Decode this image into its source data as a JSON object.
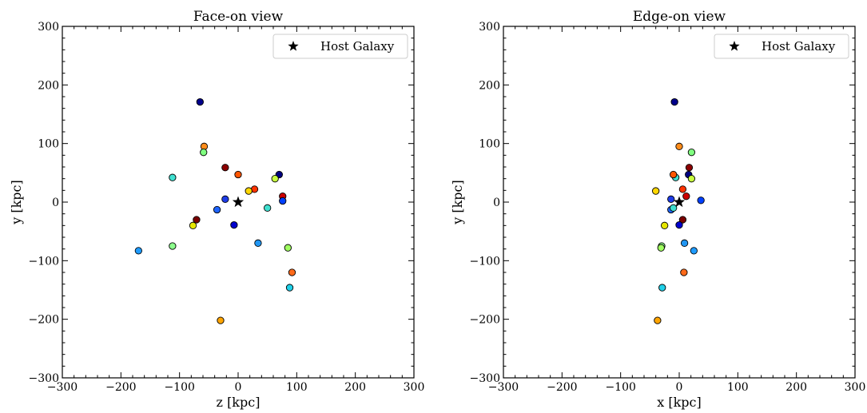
{
  "chart_data": [
    {
      "type": "scatter",
      "title": "Face-on view",
      "xlabel": "z [kpc]",
      "ylabel": "y [kpc]",
      "xlim": [
        -300,
        300
      ],
      "ylim": [
        -300,
        300
      ],
      "xticks": [
        "−300",
        "−200",
        "−100",
        "0",
        "100",
        "200",
        "300"
      ],
      "yticks": [
        "−300",
        "−200",
        "−100",
        "0",
        "100",
        "200",
        "300"
      ],
      "grid": false,
      "legend": {
        "position": "top-right",
        "entries": [
          {
            "label": "Host Galaxy",
            "marker": "star",
            "color": "#000000"
          }
        ]
      },
      "host": {
        "x": 0,
        "y": 0
      },
      "points": [
        {
          "x": -65,
          "y": 171,
          "color": "#00008b"
        },
        {
          "x": -58,
          "y": 95,
          "color": "#ff8c1a"
        },
        {
          "x": -59,
          "y": 85,
          "color": "#80ff80"
        },
        {
          "x": -112,
          "y": 42,
          "color": "#40e0d0"
        },
        {
          "x": -22,
          "y": 59,
          "color": "#8b0000"
        },
        {
          "x": 0,
          "y": 47,
          "color": "#ff5500"
        },
        {
          "x": 70,
          "y": 47,
          "color": "#000080"
        },
        {
          "x": 63,
          "y": 40,
          "color": "#c8ff40"
        },
        {
          "x": 28,
          "y": 22,
          "color": "#ff3300"
        },
        {
          "x": 18,
          "y": 19,
          "color": "#ffd700"
        },
        {
          "x": -22,
          "y": 5,
          "color": "#1e3ce6"
        },
        {
          "x": 76,
          "y": 10,
          "color": "#cc0000"
        },
        {
          "x": 76,
          "y": 2,
          "color": "#0040ff"
        },
        {
          "x": -36,
          "y": -13,
          "color": "#1e64ff"
        },
        {
          "x": 50,
          "y": -10,
          "color": "#40e0d0"
        },
        {
          "x": -71,
          "y": -30,
          "color": "#7a0000"
        },
        {
          "x": -77,
          "y": -40,
          "color": "#e6e600"
        },
        {
          "x": -7,
          "y": -39,
          "color": "#0000cd"
        },
        {
          "x": 34,
          "y": -70,
          "color": "#2196f3"
        },
        {
          "x": -112,
          "y": -75,
          "color": "#8cff8c"
        },
        {
          "x": -170,
          "y": -83,
          "color": "#1e9bff"
        },
        {
          "x": 85,
          "y": -78,
          "color": "#a0ff60"
        },
        {
          "x": 92,
          "y": -120,
          "color": "#ff6a1a"
        },
        {
          "x": 88,
          "y": -146,
          "color": "#20d0e8"
        },
        {
          "x": -30,
          "y": -202,
          "color": "#ffa500"
        }
      ]
    },
    {
      "type": "scatter",
      "title": "Edge-on view",
      "xlabel": "x [kpc]",
      "ylabel": "y [kpc]",
      "xlim": [
        -300,
        300
      ],
      "ylim": [
        -300,
        300
      ],
      "xticks": [
        "−300",
        "−200",
        "−100",
        "0",
        "100",
        "200",
        "300"
      ],
      "yticks": [
        "−300",
        "−200",
        "−100",
        "0",
        "100",
        "200",
        "300"
      ],
      "grid": false,
      "legend": {
        "position": "top-right",
        "entries": [
          {
            "label": "Host Galaxy",
            "marker": "star",
            "color": "#000000"
          }
        ]
      },
      "host": {
        "x": 0,
        "y": 0
      },
      "points": [
        {
          "x": -8,
          "y": 171,
          "color": "#00008b"
        },
        {
          "x": 0,
          "y": 95,
          "color": "#ff8c1a"
        },
        {
          "x": 21,
          "y": 85,
          "color": "#80ff80"
        },
        {
          "x": -6,
          "y": 42,
          "color": "#40e0d0"
        },
        {
          "x": 17,
          "y": 59,
          "color": "#8b0000"
        },
        {
          "x": -10,
          "y": 47,
          "color": "#ff5500"
        },
        {
          "x": 16,
          "y": 47,
          "color": "#000080"
        },
        {
          "x": 21,
          "y": 40,
          "color": "#c8ff40"
        },
        {
          "x": 6,
          "y": 22,
          "color": "#ff3300"
        },
        {
          "x": -40,
          "y": 19,
          "color": "#ffd700"
        },
        {
          "x": -14,
          "y": 5,
          "color": "#1e3ce6"
        },
        {
          "x": 12,
          "y": 10,
          "color": "#cc0000"
        },
        {
          "x": 37,
          "y": 3,
          "color": "#0040ff"
        },
        {
          "x": -14,
          "y": -13,
          "color": "#1e64ff"
        },
        {
          "x": -10,
          "y": -10,
          "color": "#40e0d0"
        },
        {
          "x": 6,
          "y": -30,
          "color": "#7a0000"
        },
        {
          "x": -25,
          "y": -40,
          "color": "#e6e600"
        },
        {
          "x": 0,
          "y": -39,
          "color": "#0000cd"
        },
        {
          "x": 9,
          "y": -70,
          "color": "#2196f3"
        },
        {
          "x": -30,
          "y": -75,
          "color": "#8cff8c"
        },
        {
          "x": 25,
          "y": -83,
          "color": "#1e9bff"
        },
        {
          "x": -31,
          "y": -78,
          "color": "#a0ff60"
        },
        {
          "x": 8,
          "y": -120,
          "color": "#ff6a1a"
        },
        {
          "x": -29,
          "y": -146,
          "color": "#20d0e8"
        },
        {
          "x": -37,
          "y": -202,
          "color": "#ffa500"
        }
      ]
    }
  ]
}
